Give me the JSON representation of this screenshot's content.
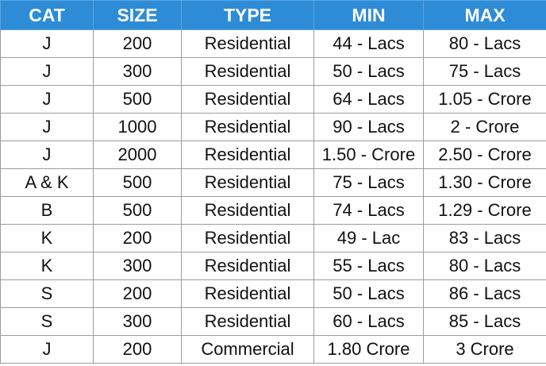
{
  "table": {
    "headers": [
      "CAT",
      "SIZE",
      "TYPE",
      "MIN",
      "MAX"
    ],
    "rows": [
      [
        "J",
        "200",
        "Residential",
        "44 - Lacs",
        "80 - Lacs"
      ],
      [
        "J",
        "300",
        "Residential",
        "50 - Lacs",
        "75 - Lacs"
      ],
      [
        "J",
        "500",
        "Residential",
        "64 - Lacs",
        "1.05 - Crore"
      ],
      [
        "J",
        "1000",
        "Residential",
        "90 - Lacs",
        "2 - Crore"
      ],
      [
        "J",
        "2000",
        "Residential",
        "1.50 - Crore",
        "2.50 - Crore"
      ],
      [
        "A & K",
        "500",
        "Residential",
        "75 - Lacs",
        "1.30 - Crore"
      ],
      [
        "B",
        "500",
        "Residential",
        "74 - Lacs",
        "1.29 - Crore"
      ],
      [
        "K",
        "200",
        "Residential",
        "49 - Lac",
        "83 - Lacs"
      ],
      [
        "K",
        "300",
        "Residential",
        "55 - Lacs",
        "80 - Lacs"
      ],
      [
        "S",
        "200",
        "Residential",
        "50 - Lacs",
        "86 - Lacs"
      ],
      [
        "S",
        "300",
        "Residential",
        "60 - Lacs",
        "85 - Lacs"
      ],
      [
        "J",
        "200",
        "Commercial",
        "1.80 Crore",
        "3 Crore"
      ]
    ]
  },
  "colors": {
    "header_background": "#2e8bd6",
    "header_text": "#ffffff",
    "grid_line": "#9c9c9c"
  }
}
